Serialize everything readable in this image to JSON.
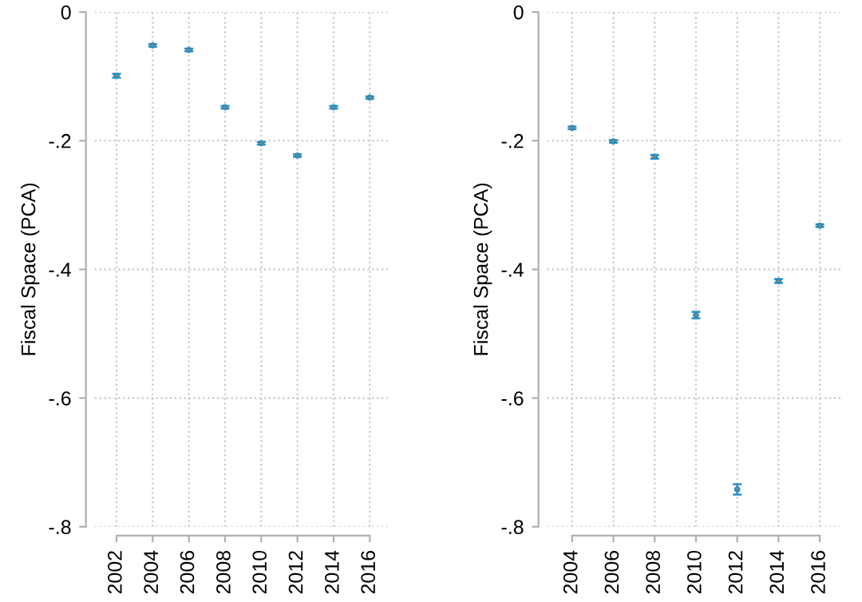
{
  "chart_data": [
    {
      "type": "scatter",
      "categories": [
        "2002",
        "2004",
        "2006",
        "2008",
        "2010",
        "2012",
        "2014",
        "2016"
      ],
      "series": [
        {
          "color": "#2a8fc0",
          "values": [
            -0.099,
            -0.052,
            -0.059,
            -0.148,
            -0.204,
            -0.223,
            -0.148,
            -0.133
          ],
          "errors": [
            0.003,
            0.002,
            0.002,
            0.002,
            0.002,
            0.002,
            0.002,
            0.002
          ]
        }
      ],
      "ylabel": "Fiscal Space (PCA)",
      "ylim": [
        -0.8,
        0
      ],
      "yticks": [
        {
          "value": -0.8,
          "label": "-.8"
        },
        {
          "value": -0.6,
          "label": "-.6"
        },
        {
          "value": -0.4,
          "label": "-.4"
        },
        {
          "value": -0.2,
          "label": "-.2"
        },
        0
      ],
      "grid": true,
      "marker": "circle"
    },
    {
      "type": "scatter",
      "categories": [
        "2004",
        "2006",
        "2008",
        "2010",
        "2012",
        "2014",
        "2016"
      ],
      "series": [
        {
          "color": "#2a8fc0",
          "values": [
            -0.18,
            -0.201,
            -0.225,
            -0.471,
            -0.742,
            -0.418,
            -0.332
          ],
          "errors": [
            0.002,
            0.002,
            0.003,
            0.005,
            0.008,
            0.003,
            0.002
          ]
        }
      ],
      "ylabel": "Fiscal Space (PCA)",
      "ylim": [
        -0.8,
        0
      ],
      "yticks": [
        {
          "value": -0.8,
          "label": "-.8"
        },
        {
          "value": -0.6,
          "label": "-.6"
        },
        {
          "value": -0.4,
          "label": "-.4"
        },
        {
          "value": -0.2,
          "label": "-.2"
        },
        0
      ],
      "grid": true,
      "marker": "circle"
    }
  ]
}
